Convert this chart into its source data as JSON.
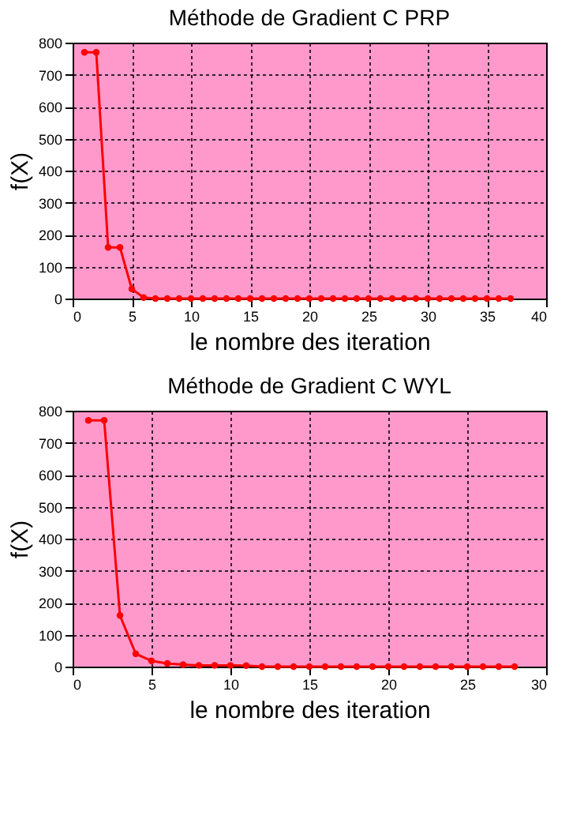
{
  "chart_data": [
    {
      "type": "line",
      "title": "Méthode de Gradient C  PRP",
      "xlabel": "le nombre des iteration",
      "ylabel": "f(X)",
      "x": [
        1,
        2,
        3,
        4,
        5,
        6,
        7,
        8,
        9,
        10,
        11,
        12,
        13,
        14,
        15,
        16,
        17,
        18,
        19,
        20,
        21,
        22,
        23,
        24,
        25,
        26,
        27,
        28,
        29,
        30,
        31,
        32,
        33,
        34,
        35,
        36,
        37
      ],
      "series": [
        {
          "color": "#ff0000",
          "values": [
            770,
            770,
            160,
            160,
            30,
            3,
            0,
            0,
            0,
            0,
            0,
            0,
            0,
            0,
            0,
            0,
            0,
            0,
            0,
            0,
            0,
            0,
            0,
            0,
            0,
            0,
            0,
            0,
            0,
            0,
            0,
            0,
            0,
            0,
            0,
            0,
            0
          ]
        }
      ],
      "xlim": [
        0,
        40
      ],
      "xticks": [
        0,
        5,
        10,
        15,
        20,
        25,
        30,
        35,
        40
      ],
      "ylim": [
        0,
        800
      ],
      "yticks": [
        0,
        100,
        200,
        300,
        400,
        500,
        600,
        700,
        800
      ],
      "grid": true,
      "marker": "circle",
      "line_style": "solid"
    },
    {
      "type": "line",
      "title": "Méthode de Gradient C  WYL",
      "xlabel": "le nombre des iteration",
      "ylabel": "f(X)",
      "x": [
        1,
        2,
        3,
        4,
        5,
        6,
        7,
        8,
        9,
        10,
        11,
        12,
        13,
        14,
        15,
        16,
        17,
        18,
        19,
        20,
        21,
        22,
        23,
        24,
        25,
        26,
        27,
        28
      ],
      "series": [
        {
          "color": "#ff0000",
          "values": [
            770,
            770,
            160,
            40,
            18,
            10,
            6,
            4,
            4,
            4,
            3,
            0,
            0,
            0,
            0,
            0,
            0,
            0,
            0,
            0,
            0,
            0,
            0,
            0,
            0,
            0,
            0,
            0
          ]
        }
      ],
      "xlim": [
        0,
        30
      ],
      "xticks": [
        0,
        5,
        10,
        15,
        20,
        25,
        30
      ],
      "ylim": [
        0,
        800
      ],
      "yticks": [
        0,
        100,
        200,
        300,
        400,
        500,
        600,
        700,
        800
      ],
      "grid": true,
      "marker": "circle",
      "line_style": "solid"
    }
  ]
}
